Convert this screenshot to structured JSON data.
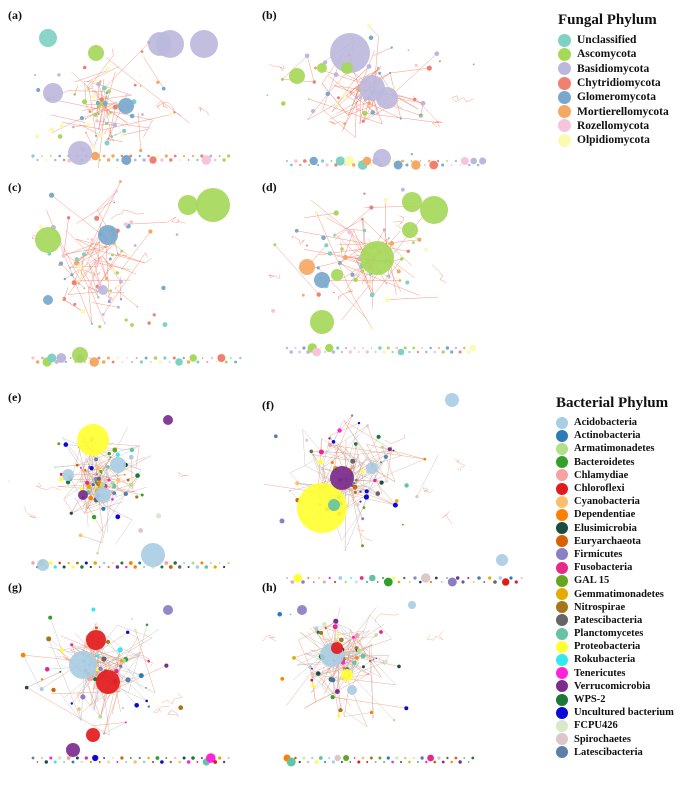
{
  "panels": [
    {
      "label": "(a)",
      "kind": "fungal",
      "seed": 11
    },
    {
      "label": "(b)",
      "kind": "fungal",
      "seed": 23
    },
    {
      "label": "(c)",
      "kind": "fungal",
      "seed": 37
    },
    {
      "label": "(d)",
      "kind": "fungal",
      "seed": 41
    },
    {
      "label": "(e)",
      "kind": "bacterial",
      "seed": 53
    },
    {
      "label": "(f)",
      "kind": "bacterial",
      "seed": 67
    },
    {
      "label": "(g)",
      "kind": "bacterial",
      "seed": 71
    },
    {
      "label": "(h)",
      "kind": "bacterial",
      "seed": 89
    }
  ],
  "fungal_legend": {
    "title": "Fungal Phylum",
    "items": [
      {
        "label": "Unclassified",
        "color": "#7fd1c3"
      },
      {
        "label": "Ascomycota",
        "color": "#a6d85a"
      },
      {
        "label": "Basidiomycota",
        "color": "#bcb8dd"
      },
      {
        "label": "Chytridiomycota",
        "color": "#f08070"
      },
      {
        "label": "Glomeromycota",
        "color": "#7aa8cc"
      },
      {
        "label": "Mortierellomycota",
        "color": "#f4a864"
      },
      {
        "label": "Rozellomycota",
        "color": "#f6c4dc"
      },
      {
        "label": "Olpidiomycota",
        "color": "#fafab0"
      }
    ]
  },
  "bacterial_legend": {
    "title": "Bacterial Phylum",
    "items": [
      {
        "label": "Acidobacteria",
        "color": "#a9cde4"
      },
      {
        "label": "Actinobacteria",
        "color": "#2c7bb6"
      },
      {
        "label": "Armatimonadetes",
        "color": "#b2df8a"
      },
      {
        "label": "Bacteroidetes",
        "color": "#33a02c"
      },
      {
        "label": "Chlamydiae",
        "color": "#f4a3a0"
      },
      {
        "label": "Chloroflexi",
        "color": "#e31a1c"
      },
      {
        "label": "Cyanobacteria",
        "color": "#fdbf6f"
      },
      {
        "label": "Dependentiae",
        "color": "#ff7f00"
      },
      {
        "label": "Elusimicrobia",
        "color": "#1a4d40"
      },
      {
        "label": "Euryarchaeota",
        "color": "#d95f02"
      },
      {
        "label": "Firmicutes",
        "color": "#8a7fc4"
      },
      {
        "label": "Fusobacteria",
        "color": "#e7298a"
      },
      {
        "label": "GAL 15",
        "color": "#66a61e"
      },
      {
        "label": "Gemmatimonadetes",
        "color": "#e6ab02"
      },
      {
        "label": "Nitrospirae",
        "color": "#a6761d"
      },
      {
        "label": "Patescibacteria",
        "color": "#666666"
      },
      {
        "label": "Planctomycetes",
        "color": "#66c2a5"
      },
      {
        "label": "Proteobacteria",
        "color": "#ffff33"
      },
      {
        "label": "Rokubacteria",
        "color": "#33e8f0"
      },
      {
        "label": "Tenericutes",
        "color": "#ff22dd"
      },
      {
        "label": "Verrucomicrobia",
        "color": "#7b2d8e"
      },
      {
        "label": "WPS-2",
        "color": "#1b7837"
      },
      {
        "label": "Uncultured bacterium",
        "color": "#0a0ad8"
      },
      {
        "label": "FCPU426",
        "color": "#d8e8c8"
      },
      {
        "label": "Spirochaetes",
        "color": "#dcc8cc"
      },
      {
        "label": "Latescibacteria",
        "color": "#5b7fa8"
      }
    ]
  }
}
